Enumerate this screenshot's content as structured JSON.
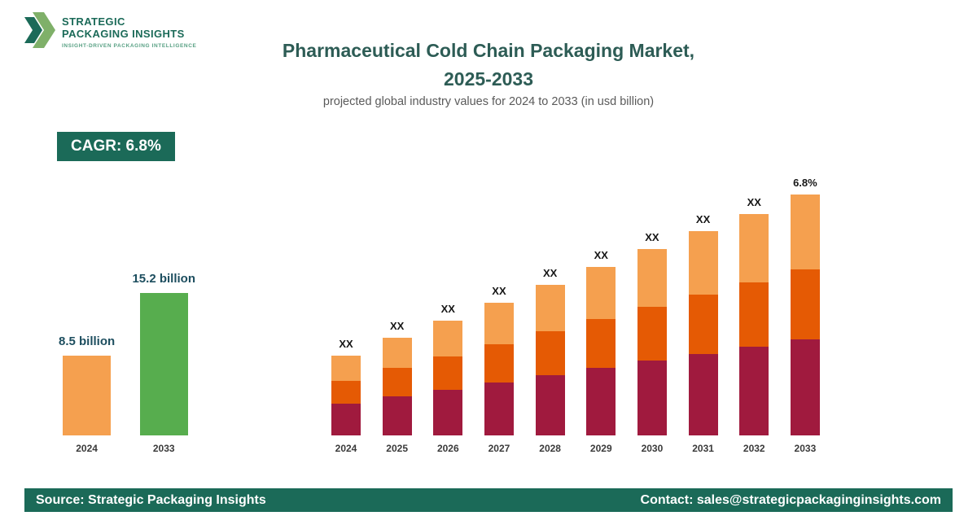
{
  "logo": {
    "line1": "STRATEGIC",
    "line2": "PACKAGING INSIGHTS",
    "tagline": "INSIGHT-DRIVEN PACKAGING INTELLIGENCE"
  },
  "header": {
    "title_line1": "Pharmaceutical Cold Chain Packaging Market,",
    "title_line2": "2025-2033",
    "subtitle": "projected global industry values for 2024 to 2033 (in usd billion)"
  },
  "cagr_badge": "CAGR: 6.8%",
  "footer": {
    "source": "Source: Strategic Packaging Insights",
    "contact": "Contact: sales@strategicpackaginginsights.com"
  },
  "colors": {
    "teal": "#1b6a58",
    "title_text": "#2d5c55",
    "value_label_text": "#1d4e5f",
    "maroon": "#a01a3e",
    "orange_mid": "#e55a04",
    "orange_light": "#f5a04f",
    "green": "#57ad4e"
  },
  "chart_data": [
    {
      "type": "bar",
      "name": "growth-comparison",
      "categories": [
        "2024",
        "2033"
      ],
      "values": [
        8.5,
        15.2
      ],
      "value_labels": [
        "8.5 billion",
        "15.2 billion"
      ],
      "bar_colors": [
        "#f5a04f",
        "#57ad4e"
      ],
      "ylabel": "usd billion"
    },
    {
      "type": "bar",
      "name": "market-by-year-stacked",
      "categories": [
        "2024",
        "2025",
        "2026",
        "2027",
        "2028",
        "2029",
        "2030",
        "2031",
        "2032",
        "2033"
      ],
      "top_labels": [
        "XX",
        "XX",
        "XX",
        "XX",
        "XX",
        "XX",
        "XX",
        "XX",
        "XX",
        "6.8%"
      ],
      "series": [
        {
          "name": "segment-bottom",
          "color": "#a01a3e",
          "values": [
            39,
            48,
            56,
            65,
            74,
            83,
            92,
            100,
            109,
            118
          ]
        },
        {
          "name": "segment-middle",
          "color": "#e55a04",
          "values": [
            28,
            35,
            41,
            47,
            54,
            60,
            66,
            73,
            79,
            86
          ]
        },
        {
          "name": "segment-top",
          "color": "#f5a04f",
          "values": [
            31,
            37,
            44,
            51,
            57,
            64,
            71,
            78,
            84,
            92
          ]
        }
      ]
    }
  ]
}
